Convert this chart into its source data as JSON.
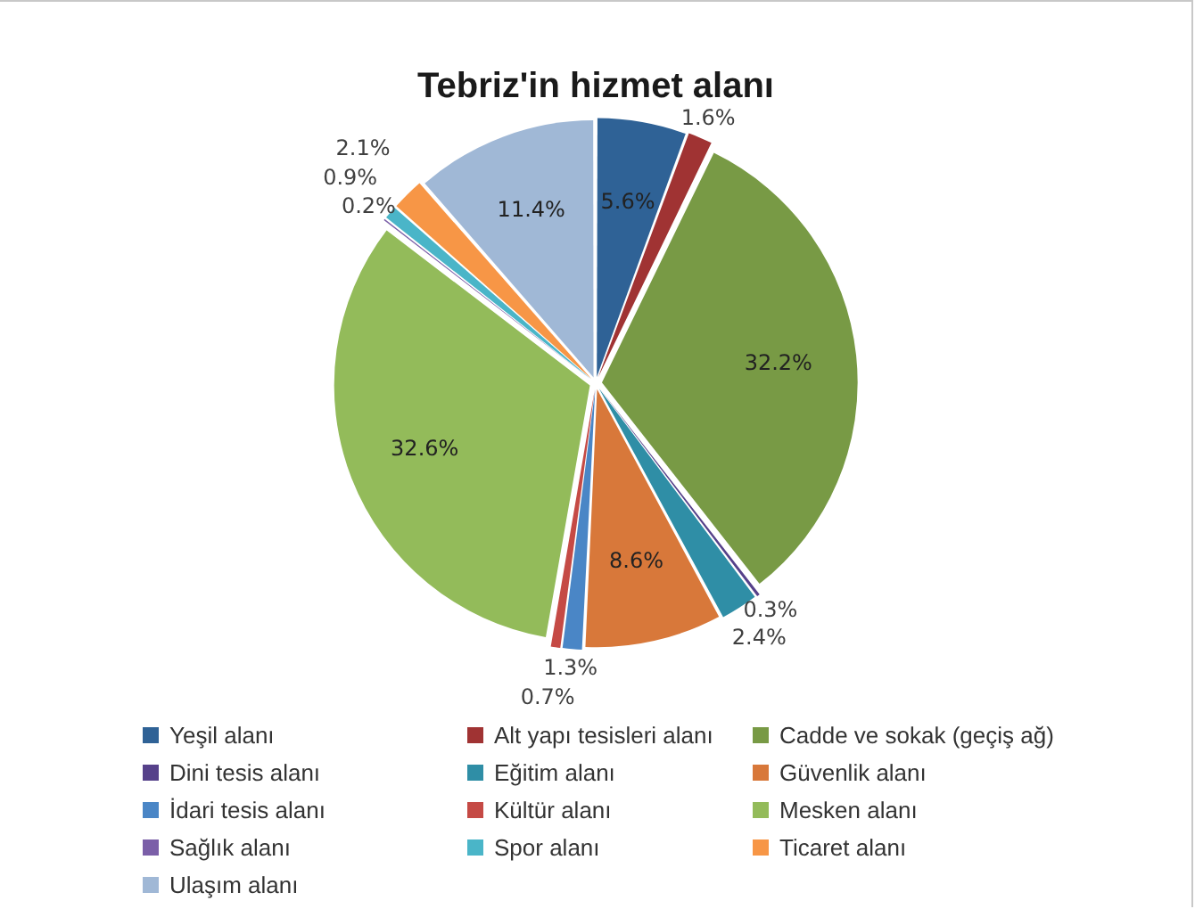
{
  "chart_data": {
    "type": "pie",
    "title": "Tebriz'in hizmet alanı",
    "categories": [
      "Yeşil alanı",
      "Alt yapı tesisleri alanı",
      "Cadde ve sokak (geçiş ağ)",
      "Dini tesis alanı",
      "Eğitim alanı",
      "Güvenlik alanı",
      "İdari tesis alanı",
      "Kültür alanı",
      "Mesken alanı",
      "Sağlık alanı",
      "Spor alanı",
      "Ticaret alanı",
      "Ulaşım alanı"
    ],
    "values": [
      5.6,
      1.6,
      32.2,
      0.3,
      2.4,
      8.6,
      1.3,
      0.7,
      32.6,
      0.2,
      0.9,
      2.1,
      11.4
    ],
    "value_labels": [
      "5.6%",
      "1.6%",
      "32.2%",
      "0.3%",
      "2.4%",
      "8.6%",
      "1.3%",
      "0.7%",
      "32.6%",
      "0.2%",
      "0.9%",
      "2.1%",
      "11.4%"
    ],
    "colors": [
      "#2f6296",
      "#a03333",
      "#789a45",
      "#56418a",
      "#2f8ea6",
      "#d8783a",
      "#4a86c6",
      "#c54a45",
      "#93bb5a",
      "#7b5fa8",
      "#4ab5c8",
      "#f79646",
      "#a0b8d6"
    ],
    "legend": "bottom"
  }
}
